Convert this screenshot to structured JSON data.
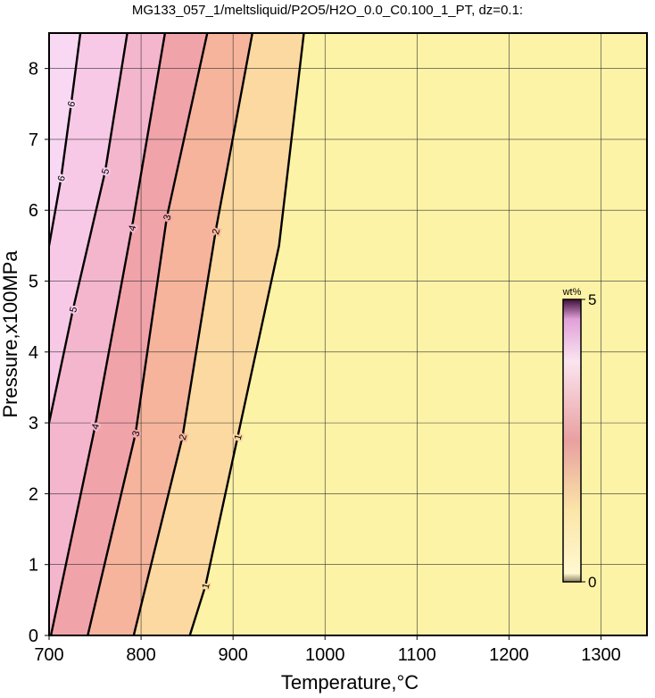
{
  "chart_data": {
    "type": "contour",
    "title": "MG133_057_1/meltsliquid/P2O5/H2O_0.0_C0.100_1_PT, dz=0.1:",
    "xlabel": "Temperature,°C",
    "ylabel": "Pressure,x100MPa",
    "xlim": [
      700,
      1350
    ],
    "ylim": [
      0,
      8.5
    ],
    "xticks": [
      700,
      800,
      900,
      1000,
      1100,
      1200,
      1300
    ],
    "yticks": [
      0,
      1,
      2,
      3,
      4,
      5,
      6,
      7,
      8
    ],
    "grid": true,
    "background": "#fdf3a6",
    "contours": [
      {
        "level": 1,
        "color": "#fcd9a0",
        "x": [
          853,
          870,
          905,
          950,
          977
        ],
        "y": [
          0,
          0.7,
          2.8,
          5.5,
          8.5
        ]
      },
      {
        "level": 2,
        "color": "#f6b49c",
        "x": [
          792,
          845,
          881,
          921
        ],
        "y": [
          0,
          2.8,
          5.7,
          8.5
        ]
      },
      {
        "level": 3,
        "color": "#f1a3aa",
        "x": [
          742,
          794,
          828,
          872
        ],
        "y": [
          0,
          2.85,
          5.9,
          8.5
        ]
      },
      {
        "level": 4,
        "color": "#f4b6cc",
        "x": [
          702,
          750,
          790,
          826
        ],
        "y": [
          0,
          2.95,
          5.75,
          8.5
        ]
      },
      {
        "level": 5,
        "color": "#f7c9e6",
        "x": [
          700,
          726,
          761,
          785
        ],
        "y": [
          3.0,
          4.6,
          6.55,
          8.5
        ]
      },
      {
        "level": 6,
        "color": "#f9d8f4",
        "x": [
          700,
          713,
          724,
          734
        ],
        "y": [
          5.5,
          6.45,
          7.5,
          8.5
        ]
      }
    ],
    "colorbar": {
      "label": "wt%",
      "lim": [
        0,
        5
      ],
      "ticks": [
        0,
        5
      ]
    }
  }
}
